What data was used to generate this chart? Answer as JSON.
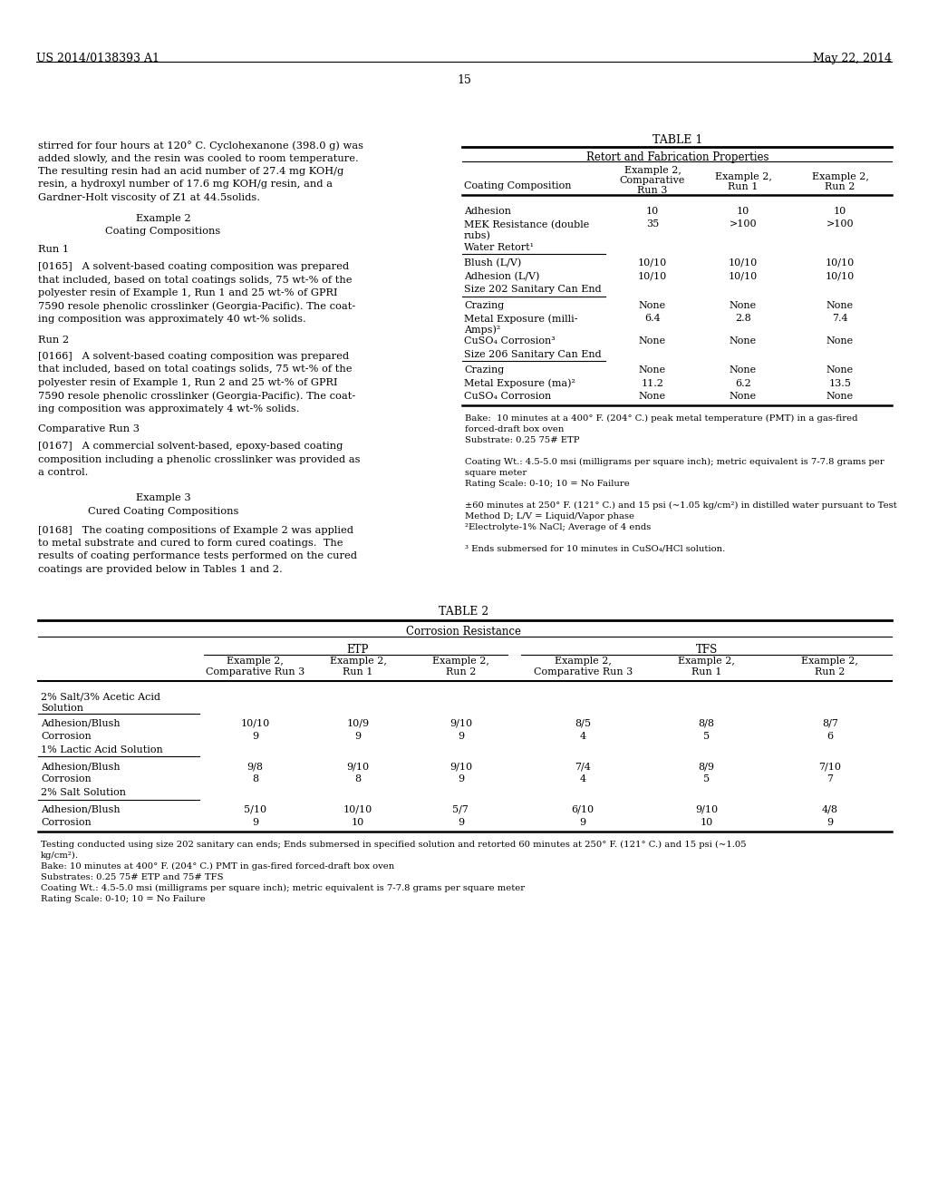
{
  "page_number": "15",
  "header_left": "US 2014/0138393 A1",
  "header_right": "May 22, 2014",
  "bg_color": "#ffffff"
}
